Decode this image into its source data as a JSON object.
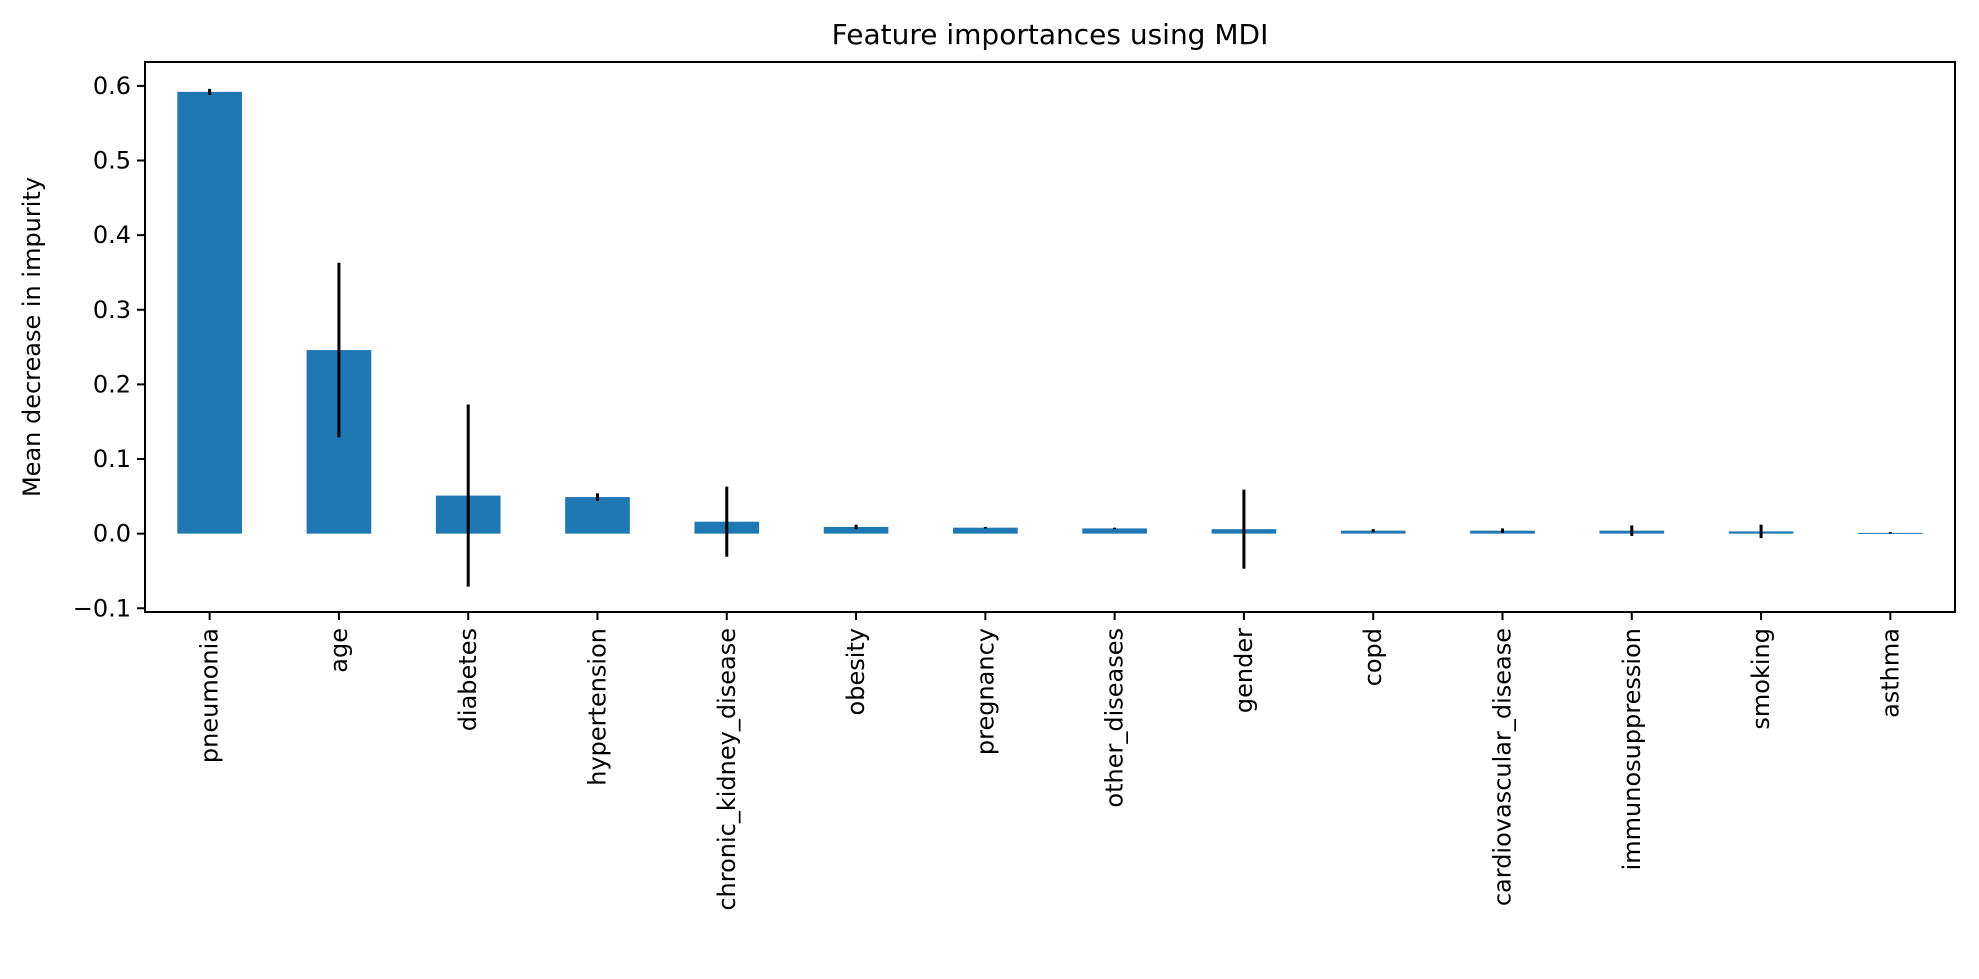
{
  "chart_data": {
    "type": "bar",
    "title": "Feature importances using MDI",
    "xlabel": "",
    "ylabel": "Mean decrease in impurity",
    "ylim": [
      -0.105,
      0.632
    ],
    "yticks": [
      -0.1,
      0.0,
      0.1,
      0.2,
      0.3,
      0.4,
      0.5,
      0.6
    ],
    "ytick_labels": [
      "−0.1",
      "0.0",
      "0.1",
      "0.2",
      "0.3",
      "0.4",
      "0.5",
      "0.6"
    ],
    "grid": false,
    "bar_color": "#1f77b4",
    "error_color": "#000000",
    "categories": [
      "pneumonia",
      "age",
      "diabetes",
      "hypertension",
      "chronic_kidney_disease",
      "obesity",
      "pregnancy",
      "other_diseases",
      "gender",
      "copd",
      "cardiovascular_disease",
      "immunosuppression",
      "smoking",
      "asthma"
    ],
    "values": [
      0.592,
      0.246,
      0.051,
      0.049,
      0.016,
      0.009,
      0.008,
      0.007,
      0.006,
      0.004,
      0.004,
      0.004,
      0.003,
      0.001
    ],
    "errors": [
      0.004,
      0.117,
      0.122,
      0.005,
      0.047,
      0.003,
      0.001,
      0.001,
      0.053,
      0.002,
      0.003,
      0.007,
      0.009,
      0.001
    ]
  }
}
